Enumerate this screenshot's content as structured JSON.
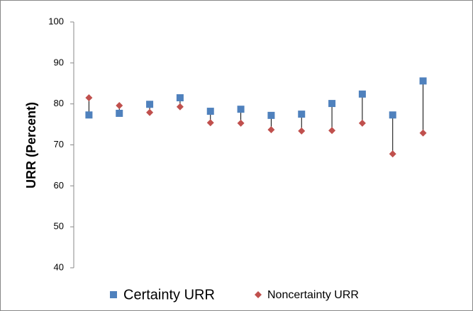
{
  "chart_data": {
    "type": "line",
    "y_label": "URR (Percent)",
    "categories": [
      null,
      null,
      null,
      null,
      null,
      null,
      null,
      null,
      null,
      null,
      null,
      null
    ],
    "series": [
      {
        "name": "Certainty URR",
        "color": "#4f81bd",
        "marker": "square",
        "values": [
          77.3,
          77.7,
          79.9,
          81.5,
          78.2,
          78.7,
          77.2,
          77.5,
          80.1,
          82.4,
          77.3,
          85.6
        ]
      },
      {
        "name": "Noncertainty URR",
        "color": "#c0504d",
        "marker": "diamond",
        "values": [
          81.5,
          79.6,
          77.9,
          79.3,
          75.4,
          75.3,
          73.7,
          73.4,
          73.5,
          75.3,
          67.8,
          72.9
        ]
      }
    ],
    "ylim": [
      40,
      100
    ],
    "yticks": [
      40,
      50,
      60,
      70,
      80,
      90,
      100
    ],
    "grid": false,
    "connect_points": false,
    "high_low_lines": true,
    "legend": "bottom"
  }
}
